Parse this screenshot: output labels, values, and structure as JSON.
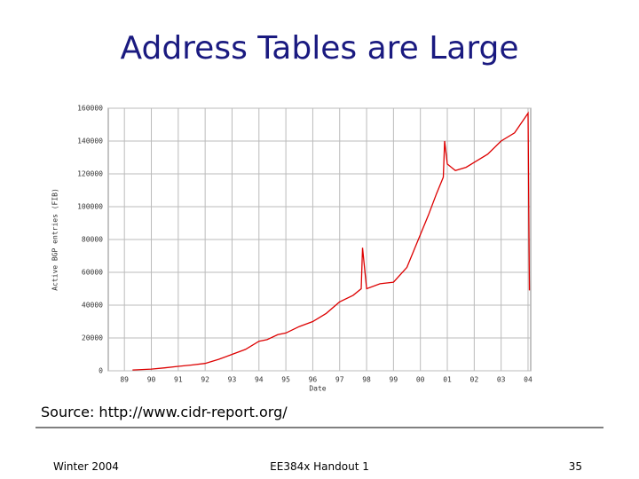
{
  "chart_data": {
    "type": "line",
    "title": "Address Tables are Large",
    "x_label": "Date",
    "y_label": "Active BGP entries (FIB)",
    "x": [
      1989.3,
      1990,
      1990.5,
      1991,
      1991.5,
      1992,
      1992.5,
      1993,
      1993.5,
      1994,
      1994.3,
      1994.7,
      1995,
      1995.5,
      1996,
      1996.5,
      1997,
      1997.5,
      1997.8,
      1997.85,
      1998,
      1998.5,
      1999,
      1999.5,
      2000,
      2000.3,
      2000.6,
      2000.85,
      2000.9,
      2001,
      2001.3,
      2001.7,
      2002,
      2002.5,
      2003,
      2003.5,
      2004,
      2004.05
    ],
    "series": [
      {
        "name": "Active BGP entries",
        "color": "#dd0000",
        "values": [
          500,
          1000,
          1800,
          2700,
          3500,
          4500,
          7000,
          10000,
          13000,
          18000,
          19000,
          22000,
          23000,
          27000,
          30000,
          35000,
          42000,
          46000,
          50000,
          75000,
          50000,
          53000,
          54000,
          63000,
          83000,
          95000,
          108000,
          118000,
          140000,
          126000,
          122000,
          124000,
          127000,
          132000,
          140000,
          145000,
          157000,
          49000
        ]
      }
    ],
    "xlim": [
      1988.4,
      2004.1
    ],
    "xticks": [
      {
        "value": 1989,
        "label": "89"
      },
      {
        "value": 1990,
        "label": "90"
      },
      {
        "value": 1991,
        "label": "91"
      },
      {
        "value": 1992,
        "label": "92"
      },
      {
        "value": 1993,
        "label": "93"
      },
      {
        "value": 1994,
        "label": "94"
      },
      {
        "value": 1995,
        "label": "95"
      },
      {
        "value": 1996,
        "label": "96"
      },
      {
        "value": 1997,
        "label": "97"
      },
      {
        "value": 1998,
        "label": "98"
      },
      {
        "value": 1999,
        "label": "99"
      },
      {
        "value": 2000,
        "label": "00"
      },
      {
        "value": 2001,
        "label": "01"
      },
      {
        "value": 2002,
        "label": "02"
      },
      {
        "value": 2003,
        "label": "03"
      },
      {
        "value": 2004,
        "label": "04"
      }
    ],
    "ylim": [
      0,
      160000
    ],
    "yticks": [
      0,
      20000,
      40000,
      60000,
      80000,
      100000,
      120000,
      140000,
      160000
    ],
    "grid": true
  },
  "source": "Source: http://www.cidr-report.org/",
  "footer": {
    "left": "Winter 2004",
    "center": "EE384x Handout 1",
    "page": "35"
  }
}
